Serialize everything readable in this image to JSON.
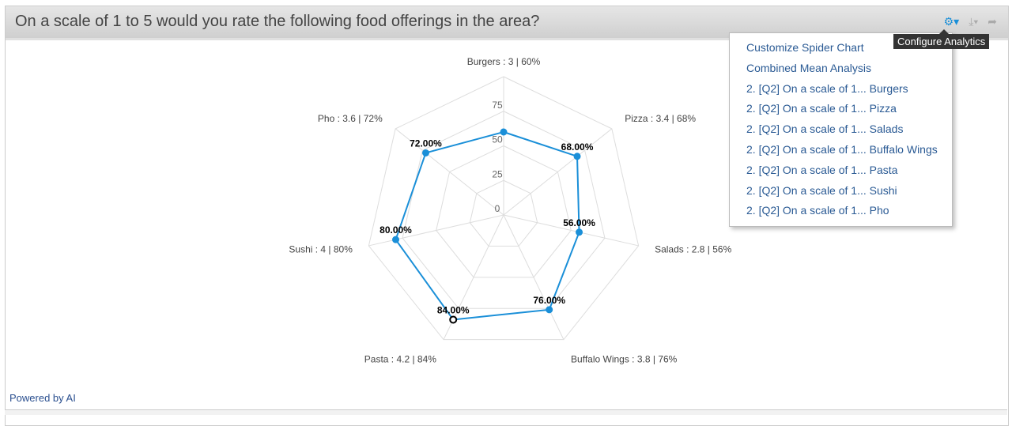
{
  "header": {
    "title": "On a scale of 1 to 5 would you rate the following food offerings in the area?"
  },
  "toolbar": {
    "icons": [
      "gears-icon",
      "download-icon",
      "share-icon"
    ],
    "tooltip": "Configure Analytics",
    "accent": "#1a8fd8"
  },
  "menu": {
    "items": [
      "Customize Spider Chart",
      "Combined Mean Analysis",
      "2. [Q2] On a scale of 1... Burgers",
      "2. [Q2] On a scale of 1... Pizza",
      "2. [Q2] On a scale of 1... Salads",
      "2. [Q2] On a scale of 1... Buffalo Wings",
      "2. [Q2] On a scale of 1... Pasta",
      "2. [Q2] On a scale of 1... Sushi",
      "2. [Q2] On a scale of 1... Pho"
    ]
  },
  "footer": {
    "powered": "Powered by AI"
  },
  "chart_data": {
    "type": "radar",
    "categories": [
      "Burgers",
      "Pizza",
      "Salads",
      "Buffalo Wings",
      "Pasta",
      "Sushi",
      "Pho"
    ],
    "axis_labels": [
      "Burgers : 3 | 60%",
      "Pizza : 3.4 | 68%",
      "Salads : 2.8 | 56%",
      "Buffalo Wings : 3.8 | 76%",
      "Pasta : 4.2 | 84%",
      "Sushi : 4 | 80%",
      "Pho : 3.6 | 72%"
    ],
    "values": [
      60,
      68,
      56,
      76,
      84,
      80,
      72
    ],
    "data_labels": [
      "",
      "68.00%",
      "56.00%",
      "76.00%",
      "84.00%",
      "80.00%",
      "72.00%"
    ],
    "radial_ticks": [
      "0",
      "25",
      "50",
      "75"
    ],
    "range": [
      0,
      100
    ],
    "color": "#1a8fd8",
    "highlighted_index": 4
  }
}
